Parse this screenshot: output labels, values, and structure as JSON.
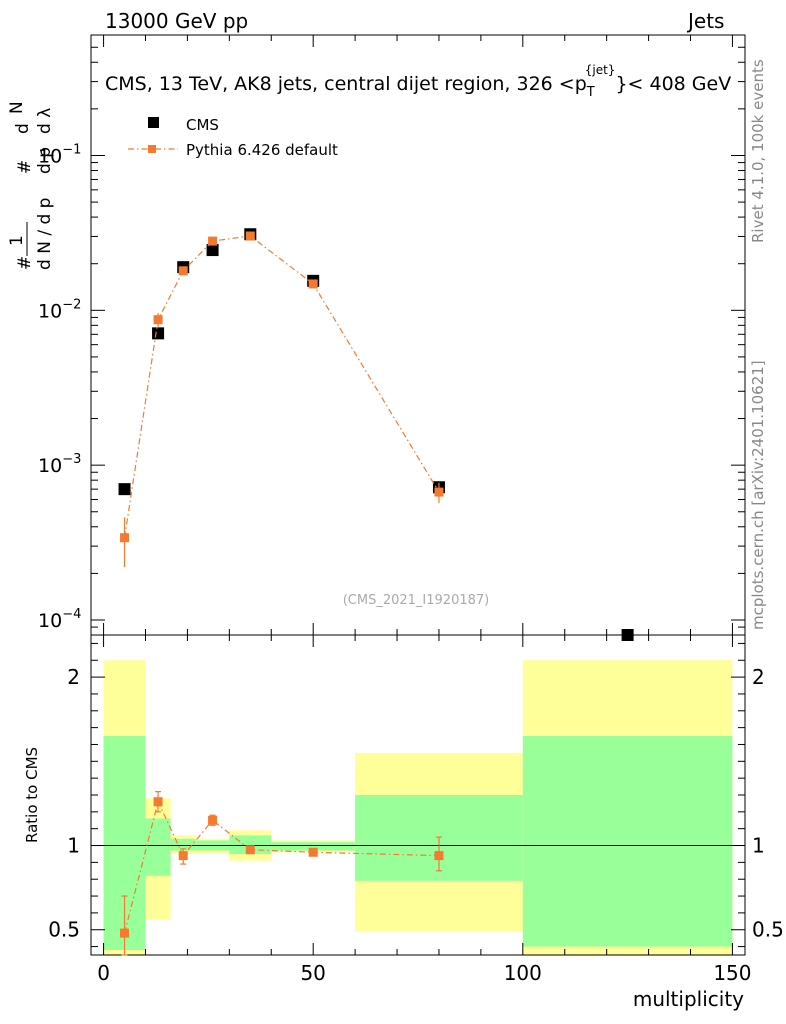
{
  "header": {
    "left": "13000 GeV pp",
    "right": "Jets"
  },
  "side_labels": {
    "rivet": "Rivet 4.1.0,  100k events",
    "site": "mcplots.cern.ch [arXiv:2401.10621]"
  },
  "chart_data": [
    {
      "type": "scatter",
      "title": "CMS, 13 TeV, AK8 jets, central dijet region, 326 <p",
      "title_sub": "T",
      "title_sup": "{jet}",
      "title_end": "}< 408 GeV",
      "watermark": "(CMS_2021_I1920187)",
      "ylabel": "1 / dN / dp_T  d²N / dp_T dλ",
      "yscale": "log",
      "ylim": [
        8e-05,
        0.6
      ],
      "xlim": [
        -3,
        153
      ],
      "y_tick_labels": [
        "10",
        "10",
        "10",
        "10"
      ],
      "y_tick_exps": [
        "−4",
        "−3",
        "−2",
        "−1"
      ],
      "legend_position": "top-left",
      "series": [
        {
          "name": "CMS",
          "color": "#000000",
          "marker": "square",
          "x": [
            5,
            13,
            19,
            26,
            35,
            50,
            80,
            125
          ],
          "y": [
            0.0007,
            0.0071,
            0.019,
            0.0245,
            0.031,
            0.0155,
            0.00072,
            7.5e-05
          ]
        },
        {
          "name": "Pythia 6.426 default",
          "color": "#f47a30",
          "marker": "square",
          "line": "dash-dot",
          "x": [
            5,
            13,
            19,
            26,
            35,
            50,
            80
          ],
          "y": [
            0.00034,
            0.0087,
            0.018,
            0.028,
            0.0302,
            0.0148,
            0.00067
          ],
          "yerr_low": [
            0.00022,
            0.0078,
            0.0172,
            0.0272,
            0.0295,
            0.0144,
            0.00057
          ],
          "yerr_high": [
            0.00046,
            0.0096,
            0.0188,
            0.0288,
            0.0309,
            0.0152,
            0.00077
          ]
        }
      ]
    },
    {
      "type": "scatter",
      "xlabel": "multiplicity",
      "ylabel": "Ratio to CMS",
      "ylim": [
        0.35,
        2.25
      ],
      "xlim": [
        -3,
        153
      ],
      "x_ticks": [
        0,
        50,
        100,
        150
      ],
      "y_ticks": [
        0.5,
        1,
        2
      ],
      "bands": [
        {
          "x0": 0,
          "x1": 10,
          "green": [
            0.38,
            1.65
          ],
          "yellow": [
            0.35,
            2.1
          ]
        },
        {
          "x0": 10,
          "x1": 16,
          "green": [
            0.82,
            1.16
          ],
          "yellow": [
            0.56,
            1.28
          ]
        },
        {
          "x0": 16,
          "x1": 22,
          "green": [
            0.97,
            1.04
          ],
          "yellow": [
            0.95,
            1.06
          ]
        },
        {
          "x0": 22,
          "x1": 30,
          "green": [
            0.97,
            1.03
          ],
          "yellow": [
            0.95,
            1.04
          ]
        },
        {
          "x0": 30,
          "x1": 40,
          "green": [
            0.95,
            1.06
          ],
          "yellow": [
            0.91,
            1.09
          ]
        },
        {
          "x0": 40,
          "x1": 60,
          "green": [
            0.97,
            1.02
          ],
          "yellow": [
            0.96,
            1.03
          ]
        },
        {
          "x0": 60,
          "x1": 100,
          "green": [
            0.79,
            1.3
          ],
          "yellow": [
            0.49,
            1.55
          ]
        },
        {
          "x0": 100,
          "x1": 150,
          "green": [
            0.4,
            1.65
          ],
          "yellow": [
            0.35,
            2.1
          ]
        }
      ],
      "series": [
        {
          "name": "Pythia 6.426 default",
          "color": "#f47a30",
          "x": [
            5,
            13,
            19,
            26,
            35,
            50,
            80
          ],
          "y": [
            0.48,
            1.26,
            0.94,
            1.15,
            0.975,
            0.96,
            0.94
          ],
          "yerr_low": [
            0.3,
            1.2,
            0.89,
            1.12,
            0.955,
            0.94,
            0.85
          ],
          "yerr_high": [
            0.7,
            1.32,
            0.98,
            1.18,
            0.995,
            0.98,
            1.05
          ]
        }
      ]
    }
  ]
}
